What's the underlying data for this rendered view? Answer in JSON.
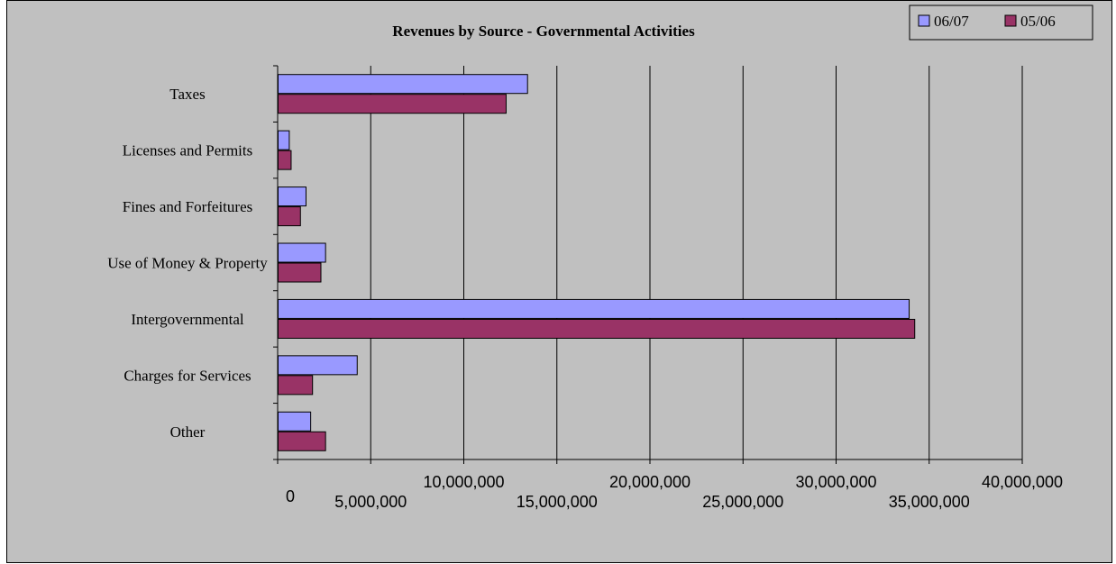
{
  "chart_data": {
    "type": "bar",
    "orientation": "horizontal",
    "title": "Revenues by Source - Governmental Activities",
    "xlabel": "",
    "ylabel": "",
    "categories": [
      "Taxes",
      "Licenses and Permits",
      "Fines and Forfeitures",
      "Use of Money & Property",
      "Intergovernmental",
      "Charges for Services",
      "Other"
    ],
    "series": [
      {
        "name": "06/07",
        "color": "#9999ff",
        "values": [
          13400000,
          600000,
          1500000,
          2550000,
          33900000,
          4250000,
          1750000
        ]
      },
      {
        "name": "05/06",
        "color": "#993366",
        "values": [
          12250000,
          700000,
          1200000,
          2300000,
          34200000,
          1850000,
          2550000
        ]
      }
    ],
    "xlim": [
      0,
      40000000
    ],
    "tick_values": [
      0,
      5000000,
      10000000,
      15000000,
      20000000,
      25000000,
      30000000,
      35000000,
      40000000
    ],
    "tick_labels": [
      "0",
      "5,000,000",
      "10,000,000",
      "15,000,000",
      "20,000,000",
      "25,000,000",
      "30,000,000",
      "35,000,000",
      "40,000,000"
    ],
    "grid": "vertical",
    "legend_position": "top-right",
    "background_color": "#c0c0c0"
  }
}
